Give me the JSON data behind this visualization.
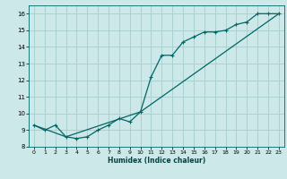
{
  "xlabel": "Humidex (Indice chaleur)",
  "background_color": "#cce8e8",
  "grid_color": "#aad0d0",
  "line_color": "#006666",
  "xlim": [
    -0.5,
    23.5
  ],
  "ylim": [
    8,
    16.5
  ],
  "xticks": [
    0,
    1,
    2,
    3,
    4,
    5,
    6,
    7,
    8,
    9,
    10,
    11,
    12,
    13,
    14,
    15,
    16,
    17,
    18,
    19,
    20,
    21,
    22,
    23
  ],
  "yticks": [
    8,
    9,
    10,
    11,
    12,
    13,
    14,
    15,
    16
  ],
  "line1_x": [
    0,
    1,
    2,
    3,
    4,
    5,
    6,
    7,
    8,
    9,
    10,
    11,
    12,
    13,
    14,
    15,
    16,
    17,
    18,
    19,
    20,
    21,
    22,
    23
  ],
  "line1_y": [
    9.3,
    9.0,
    9.3,
    8.6,
    8.5,
    8.6,
    9.0,
    9.3,
    9.7,
    9.5,
    10.1,
    12.2,
    13.5,
    13.5,
    14.3,
    14.6,
    14.9,
    14.9,
    15.0,
    15.35,
    15.5,
    16.0,
    16.0,
    16.0
  ],
  "line2_x": [
    0,
    3,
    10,
    23
  ],
  "line2_y": [
    9.3,
    8.6,
    10.1,
    16.0
  ]
}
